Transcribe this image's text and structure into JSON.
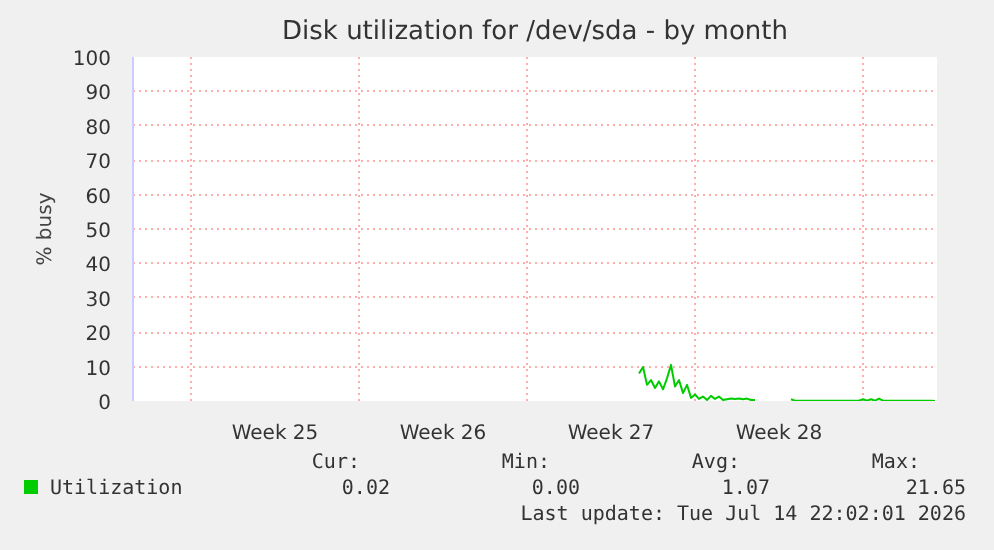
{
  "chart_data": {
    "type": "line",
    "title": "Disk utilization for /dev/sda - by month",
    "ylabel": "% busy",
    "categories": [
      null,
      null,
      null,
      null,
      null,
      null,
      null,
      null,
      null,
      null,
      null,
      null,
      null,
      null,
      null,
      null,
      null,
      null,
      null,
      null,
      null,
      null,
      null,
      null,
      null,
      null,
      null,
      null,
      null,
      null,
      null,
      null,
      null,
      null,
      null,
      "Week 25",
      null,
      null,
      null,
      null,
      null,
      null,
      null,
      null,
      null,
      null,
      null,
      null,
      null,
      null,
      null,
      null,
      null,
      null,
      null,
      null,
      null,
      null,
      null,
      null,
      null,
      null,
      null,
      null,
      null,
      null,
      null,
      null,
      null,
      null,
      null,
      null,
      null,
      null,
      null,
      null,
      null,
      "Week 26",
      null,
      null,
      null,
      null,
      null,
      null,
      null,
      null,
      null,
      null,
      null,
      null,
      null,
      null,
      null,
      null,
      null,
      null,
      null,
      null,
      null,
      null,
      null,
      null,
      null,
      null,
      null,
      null,
      null,
      null,
      null,
      null,
      null,
      null,
      null,
      null,
      null,
      null,
      null,
      null,
      null,
      "Week 27",
      null,
      null,
      null,
      null,
      null,
      null,
      null,
      null,
      null,
      null,
      null,
      null,
      null,
      null,
      null,
      null,
      null,
      null,
      null,
      null,
      null,
      null,
      null,
      null,
      null,
      null,
      null,
      null,
      null,
      null,
      null,
      null,
      null,
      null,
      null,
      null,
      null,
      null,
      null,
      null,
      null,
      "Week 28",
      null,
      null,
      null,
      null,
      null,
      null,
      null,
      null,
      null,
      null,
      null,
      null,
      null,
      null,
      null,
      null,
      null,
      null,
      null,
      null,
      null,
      null,
      null,
      null,
      null,
      null,
      null,
      null,
      null,
      null,
      null,
      null,
      null,
      null,
      null,
      null,
      null,
      null,
      null
    ],
    "series": [
      {
        "name": "Utilization",
        "color": "#00cc00",
        "values": [
          null,
          null,
          null,
          null,
          null,
          null,
          null,
          null,
          null,
          null,
          null,
          null,
          null,
          null,
          null,
          null,
          null,
          null,
          null,
          null,
          null,
          null,
          null,
          null,
          null,
          null,
          null,
          null,
          null,
          null,
          null,
          null,
          null,
          null,
          null,
          null,
          null,
          null,
          null,
          null,
          null,
          null,
          null,
          null,
          null,
          null,
          null,
          null,
          null,
          null,
          null,
          null,
          null,
          null,
          null,
          null,
          null,
          null,
          null,
          null,
          null,
          null,
          null,
          null,
          null,
          null,
          null,
          null,
          null,
          null,
          null,
          null,
          null,
          null,
          null,
          null,
          null,
          null,
          null,
          null,
          null,
          null,
          null,
          null,
          null,
          null,
          null,
          null,
          null,
          null,
          null,
          null,
          null,
          null,
          null,
          null,
          null,
          null,
          null,
          null,
          null,
          null,
          null,
          null,
          null,
          null,
          null,
          null,
          null,
          null,
          null,
          null,
          null,
          null,
          null,
          null,
          null,
          null,
          null,
          null,
          null,
          null,
          null,
          null,
          null,
          null,
          8.0,
          9.9,
          4.7,
          6.1,
          3.8,
          5.7,
          3.4,
          6.6,
          10.5,
          4.2,
          6.1,
          2.3,
          4.7,
          0.9,
          1.9,
          0.6,
          1.3,
          0.3,
          1.5,
          0.6,
          1.3,
          0.3,
          0.5,
          0.7,
          0.6,
          0.7,
          0.5,
          0.7,
          0.3,
          0.3,
          null,
          null,
          null,
          null,
          null,
          null,
          null,
          null,
          0.5,
          0.1,
          0.1,
          0.1,
          0.1,
          0.1,
          0.1,
          0.1,
          0.1,
          0.1,
          0.1,
          0.1,
          0.1,
          0.1,
          0.1,
          0.1,
          0.1,
          0.1,
          0.5,
          0.1,
          0.5,
          0.1,
          0.7,
          0.1,
          0.1,
          0.1,
          0.1,
          0.1,
          0.1,
          0.1,
          0.1,
          0.1,
          0.1,
          0.1,
          0.1,
          0.1,
          0
        ]
      }
    ],
    "ylim": [
      0,
      100
    ],
    "yticks": [
      0,
      10,
      20,
      30,
      40,
      50,
      60,
      70,
      80,
      90,
      100
    ],
    "grid": true,
    "legend": "bottom left",
    "annotations": [
      "Cur:",
      "Min:",
      "Avg:",
      "Max:",
      "0.02",
      "0.00",
      "1.07",
      "21.65",
      "Last update: Tue Jul 14 22:02:01 2026"
    ]
  }
}
